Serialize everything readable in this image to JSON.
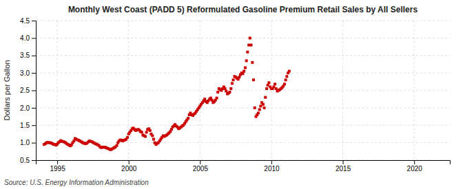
{
  "chart_data": {
    "type": "scatter",
    "title": "Monthly West Coast (PADD 5) Reformulated Gasoline Premium Retail Sales by All Sellers",
    "ylabel": "Dollars per Gallon",
    "source": "Source: U.S. Energy Information Administration",
    "color": "#cc0000",
    "marker": "square",
    "grid": true,
    "xlim": [
      1993.5,
      2022.5
    ],
    "ylim": [
      0.5,
      4.5
    ],
    "xticks": [
      1995,
      2000,
      2005,
      2010,
      2015,
      2020
    ],
    "yticks": [
      0.5,
      {
        "value": 1.0,
        "label": "1.0"
      },
      1.5,
      {
        "value": 2.0,
        "label": "2.0"
      },
      2.5,
      {
        "value": 3.0,
        "label": "3.0"
      },
      3.5,
      {
        "value": 4.0,
        "label": "4.0"
      },
      4.5
    ],
    "x": [
      1994.08,
      1994.17,
      1994.25,
      1994.33,
      1994.42,
      1994.5,
      1994.58,
      1994.67,
      1994.75,
      1994.83,
      1994.92,
      1995.0,
      1995.08,
      1995.17,
      1995.25,
      1995.33,
      1995.42,
      1995.5,
      1995.58,
      1995.67,
      1995.75,
      1995.83,
      1995.92,
      1996.0,
      1996.08,
      1996.17,
      1996.25,
      1996.33,
      1996.42,
      1996.5,
      1996.58,
      1996.67,
      1996.75,
      1996.83,
      1996.92,
      1997.0,
      1997.08,
      1997.17,
      1997.25,
      1997.33,
      1997.42,
      1997.5,
      1997.58,
      1997.67,
      1997.75,
      1997.83,
      1997.92,
      1998.0,
      1998.08,
      1998.17,
      1998.25,
      1998.33,
      1998.42,
      1998.5,
      1998.58,
      1998.67,
      1998.75,
      1998.83,
      1998.92,
      1999.0,
      1999.08,
      1999.17,
      1999.25,
      1999.33,
      1999.42,
      1999.5,
      1999.58,
      1999.67,
      1999.75,
      1999.83,
      1999.92,
      2000.0,
      2000.08,
      2000.17,
      2000.25,
      2000.33,
      2000.42,
      2000.5,
      2000.58,
      2000.67,
      2000.75,
      2000.83,
      2000.92,
      2001.0,
      2001.08,
      2001.17,
      2001.25,
      2001.33,
      2001.42,
      2001.5,
      2001.58,
      2001.67,
      2001.75,
      2001.83,
      2001.92,
      2002.0,
      2002.08,
      2002.17,
      2002.25,
      2002.33,
      2002.42,
      2002.5,
      2002.58,
      2002.67,
      2002.75,
      2002.83,
      2002.92,
      2003.0,
      2003.08,
      2003.17,
      2003.25,
      2003.33,
      2003.42,
      2003.5,
      2003.58,
      2003.67,
      2003.75,
      2003.83,
      2003.92,
      2004.0,
      2004.08,
      2004.17,
      2004.25,
      2004.33,
      2004.42,
      2004.5,
      2004.58,
      2004.67,
      2004.75,
      2004.83,
      2004.92,
      2005.0,
      2005.08,
      2005.17,
      2005.25,
      2005.33,
      2005.42,
      2005.5,
      2005.58,
      2005.67,
      2005.75,
      2005.83,
      2005.92,
      2006.0,
      2006.08,
      2006.17,
      2006.25,
      2006.33,
      2006.42,
      2006.5,
      2006.58,
      2006.67,
      2006.75,
      2006.83,
      2006.92,
      2007.0,
      2007.08,
      2007.17,
      2007.25,
      2007.33,
      2007.42,
      2007.5,
      2007.58,
      2007.67,
      2007.75,
      2007.83,
      2007.92,
      2008.0,
      2008.08,
      2008.17,
      2008.25,
      2008.33,
      2008.42,
      2008.5,
      2008.58,
      2008.67,
      2008.75,
      2008.83,
      2008.92,
      2009.0,
      2009.08,
      2009.17,
      2009.25,
      2009.33,
      2009.42,
      2009.5,
      2009.58,
      2009.67,
      2009.75,
      2009.83,
      2009.92,
      2010.0,
      2010.08,
      2010.17,
      2010.25,
      2010.33,
      2010.42,
      2010.5,
      2010.58,
      2010.67,
      2010.75,
      2010.83,
      2010.92,
      2011.0,
      2011.08,
      2011.17,
      2011.25
    ],
    "values": [
      0.95,
      0.97,
      1.0,
      1.01,
      1.0,
      1.0,
      0.99,
      0.97,
      0.95,
      0.95,
      0.93,
      0.96,
      1.0,
      1.03,
      1.06,
      1.04,
      1.03,
      1.02,
      1.0,
      0.97,
      0.95,
      0.93,
      0.91,
      0.94,
      1.0,
      1.05,
      1.12,
      1.1,
      1.08,
      1.07,
      1.05,
      1.03,
      1.01,
      0.99,
      0.98,
      0.97,
      0.99,
      1.02,
      1.05,
      1.04,
      1.03,
      1.01,
      0.99,
      0.97,
      0.96,
      0.94,
      0.92,
      0.88,
      0.86,
      0.87,
      0.87,
      0.87,
      0.86,
      0.84,
      0.83,
      0.81,
      0.8,
      0.82,
      0.84,
      0.86,
      0.88,
      0.92,
      1.0,
      1.05,
      1.08,
      1.07,
      1.05,
      1.07,
      1.08,
      1.1,
      1.15,
      1.25,
      1.3,
      1.35,
      1.4,
      1.42,
      1.38,
      1.35,
      1.37,
      1.38,
      1.36,
      1.32,
      1.3,
      1.22,
      1.2,
      1.18,
      1.3,
      1.38,
      1.4,
      1.35,
      1.25,
      1.2,
      1.1,
      1.0,
      0.95,
      0.98,
      1.0,
      1.05,
      1.1,
      1.15,
      1.2,
      1.18,
      1.2,
      1.22,
      1.25,
      1.28,
      1.32,
      1.38,
      1.45,
      1.48,
      1.52,
      1.48,
      1.45,
      1.4,
      1.42,
      1.45,
      1.48,
      1.5,
      1.55,
      1.6,
      1.65,
      1.7,
      1.8,
      1.85,
      1.8,
      1.78,
      1.82,
      1.85,
      1.9,
      1.95,
      2.0,
      2.05,
      2.1,
      2.15,
      2.2,
      2.25,
      2.18,
      2.15,
      2.2,
      2.25,
      2.28,
      2.22,
      2.15,
      2.18,
      2.22,
      2.28,
      2.45,
      2.55,
      2.52,
      2.5,
      2.55,
      2.6,
      2.55,
      2.48,
      2.4,
      2.42,
      2.45,
      2.55,
      2.7,
      2.8,
      2.9,
      2.88,
      2.85,
      2.82,
      2.88,
      2.95,
      3.0,
      2.98,
      3.05,
      3.15,
      3.35,
      3.6,
      3.8,
      4.0,
      3.8,
      3.3,
      2.8,
      2.0,
      1.75,
      1.8,
      1.85,
      1.95,
      2.05,
      2.15,
      2.1,
      2.0,
      2.3,
      2.55,
      2.65,
      2.72,
      2.6,
      2.55,
      2.55,
      2.6,
      2.68,
      2.55,
      2.48,
      2.5,
      2.52,
      2.55,
      2.58,
      2.62,
      2.68,
      2.8,
      2.9,
      3.0,
      3.05
    ]
  }
}
